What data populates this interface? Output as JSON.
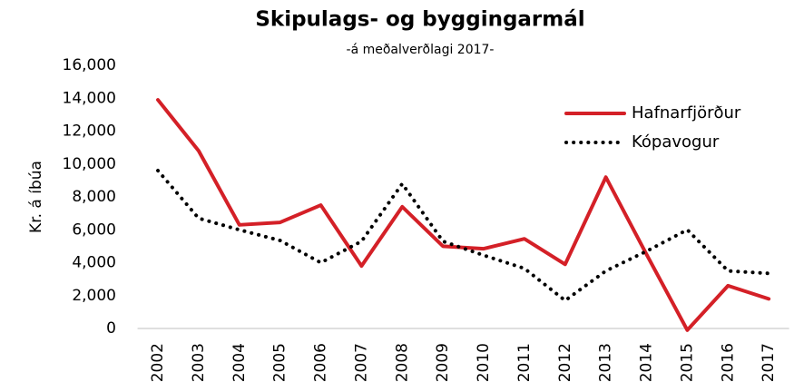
{
  "chart_data": {
    "type": "line",
    "title": "Skipulags- og byggingarmál",
    "subtitle": "-á meðalverðlagi 2017-",
    "y_label": "Kr. á íbúa",
    "categories": [
      "2002",
      "2003",
      "2004",
      "2005",
      "2006",
      "2007",
      "2008",
      "2009",
      "2010",
      "2011",
      "2012",
      "2013",
      "2014",
      "2015",
      "2016",
      "2017"
    ],
    "series": [
      {
        "name": "Hafnarfjörður",
        "color": "#d42027",
        "style": "solid",
        "values": [
          13900,
          10800,
          6300,
          6450,
          7500,
          3800,
          7400,
          5000,
          4850,
          5450,
          3900,
          9200,
          4500,
          -100,
          2600,
          1800
        ]
      },
      {
        "name": "Kópavogur",
        "color": "#000000",
        "style": "dotted",
        "values": [
          9600,
          6700,
          6000,
          5350,
          4000,
          5300,
          8800,
          5300,
          4450,
          3650,
          1700,
          3500,
          4700,
          6000,
          3500,
          3350
        ]
      }
    ],
    "ylim": [
      0,
      16000
    ],
    "yticks": [
      0,
      {
        "value": 2000,
        "label": "2,000"
      },
      {
        "value": 4000,
        "label": "4,000"
      },
      {
        "value": 6000,
        "label": "6,000"
      },
      {
        "value": 8000,
        "label": "8,000"
      },
      {
        "value": 10000,
        "label": "10,000"
      },
      {
        "value": 12000,
        "label": "12,000"
      },
      {
        "value": 14000,
        "label": "14,000"
      },
      {
        "value": 16000,
        "label": "16,000"
      }
    ],
    "grid": false,
    "legend": "top-right"
  }
}
